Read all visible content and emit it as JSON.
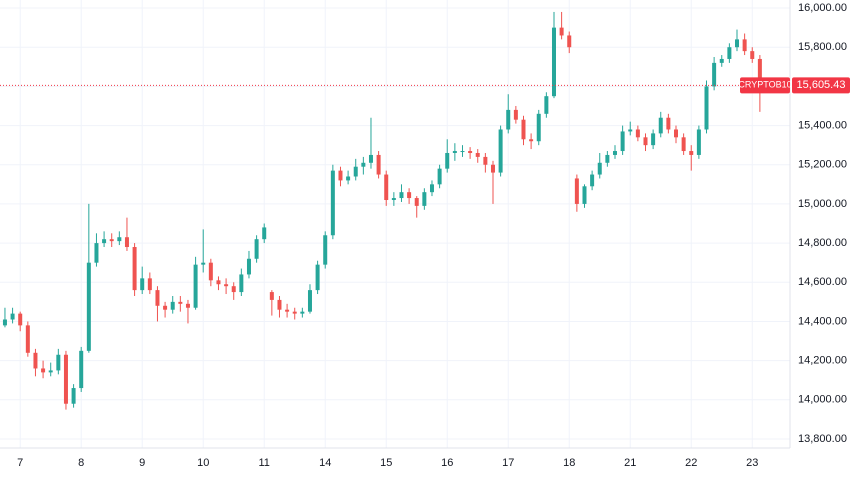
{
  "chart_data": {
    "type": "candlestick",
    "symbol": "CRYPTOB10",
    "last_price": {
      "value": 15605.43,
      "label": "15,605.43"
    },
    "up_color": "#26a69a",
    "down_color": "#ef5350",
    "price_line_color": "#f23645",
    "grid": true,
    "ylim": [
      13754,
      16041
    ],
    "yticks": [
      {
        "value": 13800,
        "label": "13,800.00"
      },
      {
        "value": 14000,
        "label": "14,000.00"
      },
      {
        "value": 14200,
        "label": "14,200.00"
      },
      {
        "value": 14400,
        "label": "14,400.00"
      },
      {
        "value": 14600,
        "label": "14,600.00"
      },
      {
        "value": 14800,
        "label": "14,800.00"
      },
      {
        "value": 15000,
        "label": "15,000.00"
      },
      {
        "value": 15200,
        "label": "15,200.00"
      },
      {
        "value": 15400,
        "label": "15,400.00"
      },
      {
        "value": 15600,
        "label": "15,600.00"
      },
      {
        "value": 15800,
        "label": "15,800.00"
      },
      {
        "value": 16000,
        "label": "16,000.00"
      }
    ],
    "xlim": [
      -0.65,
      102.95
    ],
    "xticks": [
      {
        "value": 2,
        "label": "7"
      },
      {
        "value": 10,
        "label": "8"
      },
      {
        "value": 18,
        "label": "9"
      },
      {
        "value": 26,
        "label": "10"
      },
      {
        "value": 34,
        "label": "11"
      },
      {
        "value": 42,
        "label": "14"
      },
      {
        "value": 50,
        "label": "15"
      },
      {
        "value": 58,
        "label": "16"
      },
      {
        "value": 66,
        "label": "17"
      },
      {
        "value": 74,
        "label": "18"
      },
      {
        "value": 82,
        "label": "21"
      },
      {
        "value": 90,
        "label": "22"
      },
      {
        "value": 98,
        "label": "23"
      }
    ],
    "ohlc": [
      [
        14380,
        14470,
        14370,
        14410
      ],
      [
        14410,
        14470,
        14390,
        14440
      ],
      [
        14440,
        14450,
        14350,
        14380
      ],
      [
        14380,
        14400,
        14220,
        14240
      ],
      [
        14240,
        14260,
        14120,
        14160
      ],
      [
        14160,
        14200,
        14110,
        14140
      ],
      [
        14140,
        14190,
        14120,
        14150
      ],
      [
        14150,
        14260,
        14130,
        14230
      ],
      [
        14230,
        14250,
        13950,
        13980
      ],
      [
        13980,
        14080,
        13960,
        14060
      ],
      [
        14060,
        14270,
        14040,
        14250
      ],
      [
        14250,
        15000,
        14240,
        14700
      ],
      [
        14700,
        14850,
        14680,
        14800
      ],
      [
        14800,
        14860,
        14780,
        14820
      ],
      [
        14820,
        14850,
        14780,
        14810
      ],
      [
        14810,
        14860,
        14790,
        14830
      ],
      [
        14830,
        14930,
        14760,
        14780
      ],
      [
        14780,
        14800,
        14530,
        14560
      ],
      [
        14560,
        14680,
        14540,
        14620
      ],
      [
        14620,
        14650,
        14540,
        14560
      ],
      [
        14560,
        14580,
        14400,
        14480
      ],
      [
        14480,
        14500,
        14420,
        14460
      ],
      [
        14460,
        14530,
        14440,
        14500
      ],
      [
        14500,
        14530,
        14450,
        14490
      ],
      [
        14490,
        14510,
        14390,
        14470
      ],
      [
        14470,
        14730,
        14460,
        14690
      ],
      [
        14690,
        14870,
        14650,
        14700
      ],
      [
        14700,
        14720,
        14580,
        14610
      ],
      [
        14610,
        14630,
        14560,
        14590
      ],
      [
        14590,
        14620,
        14540,
        14580
      ],
      [
        14580,
        14600,
        14510,
        14550
      ],
      [
        14550,
        14670,
        14530,
        14640
      ],
      [
        14640,
        14760,
        14620,
        14720
      ],
      [
        14720,
        14840,
        14700,
        14820
      ],
      [
        14820,
        14900,
        14800,
        14880
      ],
      [
        14550,
        14560,
        14430,
        14510
      ],
      [
        14510,
        14530,
        14420,
        14460
      ],
      [
        14460,
        14490,
        14420,
        14450
      ],
      [
        14450,
        14470,
        14410,
        14440
      ],
      [
        14440,
        14470,
        14420,
        14450
      ],
      [
        14450,
        14590,
        14440,
        14560
      ],
      [
        14560,
        14710,
        14540,
        14690
      ],
      [
        14690,
        14860,
        14670,
        14840
      ],
      [
        14840,
        15200,
        14820,
        15170
      ],
      [
        15170,
        15190,
        15090,
        15120
      ],
      [
        15120,
        15170,
        15100,
        15140
      ],
      [
        15140,
        15230,
        15120,
        15190
      ],
      [
        15190,
        15240,
        15150,
        15210
      ],
      [
        15210,
        15440,
        15180,
        15250
      ],
      [
        15250,
        15270,
        15130,
        15150
      ],
      [
        15150,
        15170,
        14990,
        15020
      ],
      [
        15020,
        15060,
        14990,
        15030
      ],
      [
        15030,
        15100,
        15010,
        15060
      ],
      [
        15060,
        15080,
        15000,
        15030
      ],
      [
        15030,
        15040,
        14930,
        14990
      ],
      [
        14990,
        15080,
        14970,
        15060
      ],
      [
        15060,
        15120,
        15040,
        15100
      ],
      [
        15100,
        15200,
        15080,
        15180
      ],
      [
        15180,
        15330,
        15160,
        15260
      ],
      [
        15260,
        15310,
        15220,
        15270
      ],
      [
        15270,
        15300,
        15240,
        15270
      ],
      [
        15270,
        15290,
        15230,
        15260
      ],
      [
        15260,
        15280,
        15210,
        15240
      ],
      [
        15240,
        15260,
        15160,
        15200
      ],
      [
        15200,
        15220,
        15000,
        15160
      ],
      [
        15160,
        15400,
        15140,
        15380
      ],
      [
        15380,
        15560,
        15360,
        15480
      ],
      [
        15480,
        15500,
        15410,
        15430
      ],
      [
        15430,
        15450,
        15300,
        15330
      ],
      [
        15330,
        15360,
        15280,
        15320
      ],
      [
        15320,
        15480,
        15300,
        15460
      ],
      [
        15460,
        15570,
        15440,
        15550
      ],
      [
        15550,
        15980,
        15540,
        15900
      ],
      [
        15900,
        15980,
        15840,
        15860
      ],
      [
        15860,
        15880,
        15770,
        15800
      ],
      [
        15130,
        15150,
        14960,
        15000
      ],
      [
        15000,
        15100,
        14980,
        15090
      ],
      [
        15090,
        15170,
        15070,
        15150
      ],
      [
        15150,
        15260,
        15130,
        15210
      ],
      [
        15210,
        15270,
        15190,
        15250
      ],
      [
        15250,
        15300,
        15230,
        15270
      ],
      [
        15270,
        15400,
        15250,
        15370
      ],
      [
        15370,
        15420,
        15350,
        15380
      ],
      [
        15380,
        15400,
        15320,
        15340
      ],
      [
        15340,
        15360,
        15270,
        15300
      ],
      [
        15300,
        15380,
        15280,
        15360
      ],
      [
        15360,
        15470,
        15340,
        15440
      ],
      [
        15440,
        15460,
        15360,
        15380
      ],
      [
        15380,
        15400,
        15310,
        15340
      ],
      [
        15340,
        15360,
        15250,
        15270
      ],
      [
        15270,
        15300,
        15170,
        15250
      ],
      [
        15250,
        15400,
        15230,
        15380
      ],
      [
        15380,
        15630,
        15360,
        15600
      ],
      [
        15600,
        15750,
        15580,
        15720
      ],
      [
        15720,
        15760,
        15700,
        15740
      ],
      [
        15740,
        15820,
        15720,
        15800
      ],
      [
        15800,
        15890,
        15780,
        15840
      ],
      [
        15840,
        15870,
        15760,
        15780
      ],
      [
        15780,
        15800,
        15720,
        15740
      ],
      [
        15740,
        15760,
        15470,
        15605.43
      ]
    ]
  }
}
